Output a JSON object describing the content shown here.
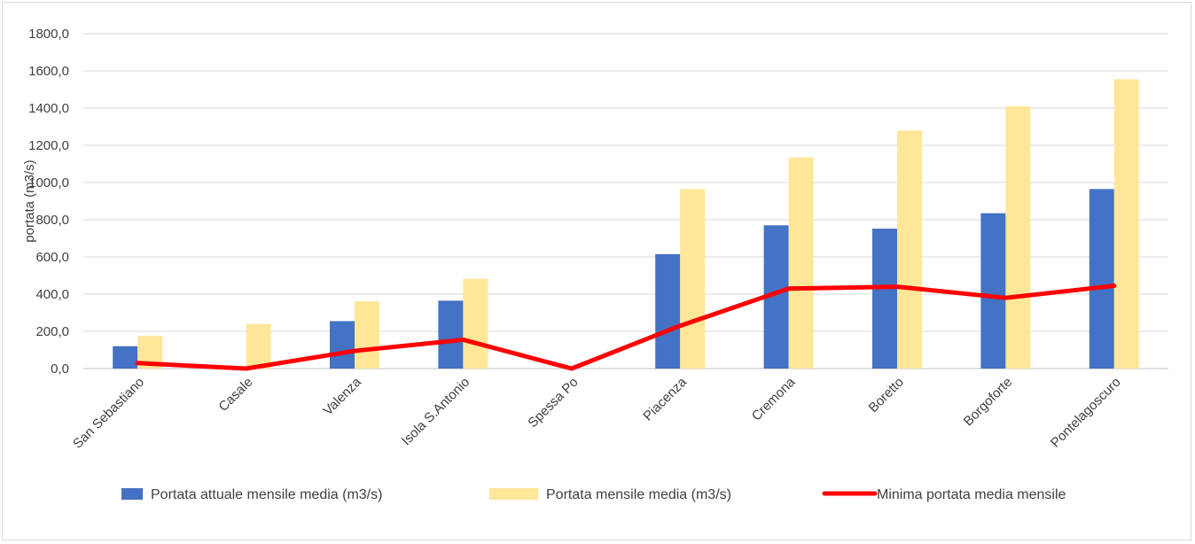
{
  "chart_data": {
    "type": "bar",
    "title": "",
    "ylabel": "portata (m3/s)",
    "xlabel": "",
    "ylim": [
      0,
      1800
    ],
    "yticks": [
      "0,0",
      "200,0",
      "400,0",
      "600,0",
      "800,0",
      "1000,0",
      "1200,0",
      "1400,0",
      "1600,0",
      "1800,0"
    ],
    "categories": [
      "San Sebastiano",
      "Casale",
      "Valenza",
      "Isola S.Antonio",
      "Spessa Po",
      "Piacenza",
      "Cremona",
      "Boretto",
      "Borgoforte",
      "Pontelagoscuro"
    ],
    "series": [
      {
        "name": "Portata attuale mensile media (m3/s)",
        "kind": "bar",
        "color": "#4472c4",
        "values": [
          120,
          null,
          255,
          365,
          null,
          615,
          770,
          752,
          835,
          965
        ]
      },
      {
        "name": "Portata mensile media (m3/s)",
        "kind": "bar",
        "color": "#ffe699",
        "values": [
          175,
          240,
          362,
          482,
          null,
          965,
          1135,
          1280,
          1410,
          1555
        ]
      },
      {
        "name": "Minima portata media mensile",
        "kind": "line",
        "color": "#ff0000",
        "values": [
          30,
          0,
          95,
          155,
          0,
          230,
          430,
          440,
          380,
          445
        ]
      }
    ],
    "grid": true,
    "legend": "bottom"
  }
}
